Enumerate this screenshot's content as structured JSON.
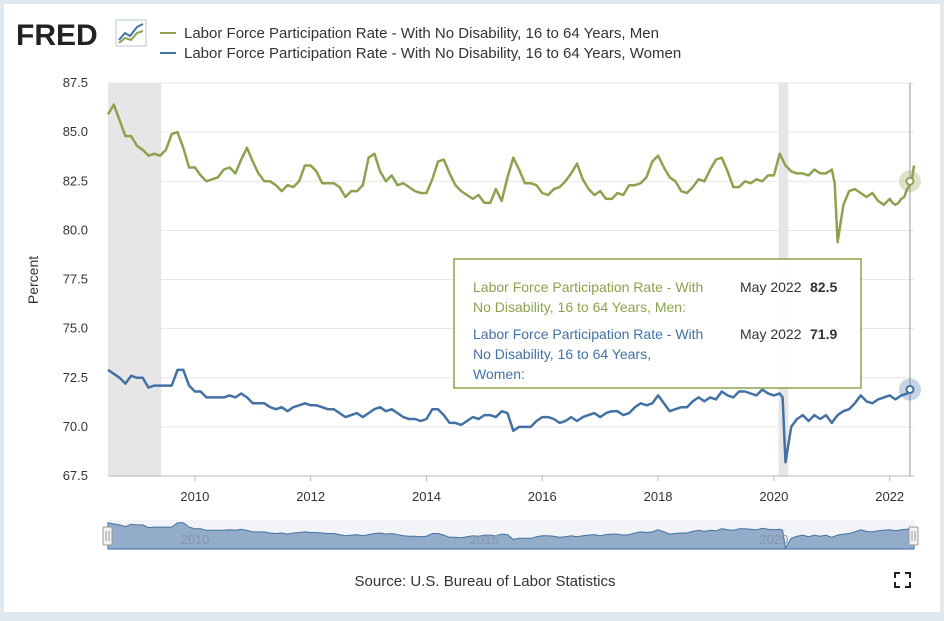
{
  "logo_text": "FRED",
  "colors": {
    "men": "#8da24f",
    "women": "#4471a3",
    "recession": "#e6e6e6",
    "tooltip_border": "#8da24f"
  },
  "source": "Source: U.S. Bureau of Labor Statistics",
  "fullscreen_icon": "fullscreen-icon",
  "tooltip": {
    "men_lines": [
      "Labor Force Participation Rate - With",
      "No Disability, 16 to 64 Years, Men:"
    ],
    "women_lines": [
      "Labor Force Participation Rate - With",
      "No Disability, 16 to 64 Years,",
      "Women:"
    ],
    "date": "May 2022",
    "men_value": "82.5",
    "women_value": "71.9"
  },
  "chart_data": {
    "type": "line",
    "ylabel": "Percent",
    "ylim": [
      67.5,
      87.5
    ],
    "yticks": [
      67.5,
      70.0,
      72.5,
      75.0,
      77.5,
      80.0,
      82.5,
      85.0,
      87.5
    ],
    "ytick_labels": [
      "67.5",
      "70.0",
      "72.5",
      "75.0",
      "77.5",
      "80.0",
      "82.5",
      "85.0",
      "87.5"
    ],
    "xlim": [
      2008.5,
      2022.42
    ],
    "xticks": [
      2010,
      2012,
      2014,
      2016,
      2018,
      2020,
      2022
    ],
    "xtick_labels": [
      "2010",
      "2012",
      "2014",
      "2016",
      "2018",
      "2020",
      "2022"
    ],
    "grid": true,
    "legend_position": "top",
    "recessions": [
      [
        2008.5,
        2009.42
      ],
      [
        2020.08,
        2020.25
      ]
    ],
    "navigator_labels": [
      "2010",
      "2015",
      "2020"
    ],
    "series": [
      {
        "name": "Labor Force Participation Rate - With No Disability, 16 to 64 Years, Men",
        "points": [
          [
            2008.5,
            85.9
          ],
          [
            2008.6,
            86.4
          ],
          [
            2008.7,
            85.6
          ],
          [
            2008.8,
            84.8
          ],
          [
            2008.9,
            84.8
          ],
          [
            2009.0,
            84.3
          ],
          [
            2009.1,
            84.1
          ],
          [
            2009.2,
            83.8
          ],
          [
            2009.3,
            83.9
          ],
          [
            2009.4,
            83.8
          ],
          [
            2009.5,
            84.1
          ],
          [
            2009.6,
            84.9
          ],
          [
            2009.7,
            85.0
          ],
          [
            2009.8,
            84.2
          ],
          [
            2009.9,
            83.2
          ],
          [
            2010.0,
            83.2
          ],
          [
            2010.1,
            82.8
          ],
          [
            2010.2,
            82.5
          ],
          [
            2010.3,
            82.6
          ],
          [
            2010.4,
            82.7
          ],
          [
            2010.5,
            83.1
          ],
          [
            2010.6,
            83.2
          ],
          [
            2010.7,
            82.9
          ],
          [
            2010.8,
            83.6
          ],
          [
            2010.9,
            84.2
          ],
          [
            2011.0,
            83.5
          ],
          [
            2011.1,
            82.9
          ],
          [
            2011.2,
            82.5
          ],
          [
            2011.3,
            82.5
          ],
          [
            2011.4,
            82.3
          ],
          [
            2011.5,
            82.0
          ],
          [
            2011.6,
            82.3
          ],
          [
            2011.7,
            82.2
          ],
          [
            2011.8,
            82.5
          ],
          [
            2011.9,
            83.3
          ],
          [
            2012.0,
            83.3
          ],
          [
            2012.1,
            83.0
          ],
          [
            2012.2,
            82.4
          ],
          [
            2012.3,
            82.4
          ],
          [
            2012.4,
            82.4
          ],
          [
            2012.5,
            82.2
          ],
          [
            2012.6,
            81.7
          ],
          [
            2012.7,
            82.0
          ],
          [
            2012.8,
            82.0
          ],
          [
            2012.9,
            82.3
          ],
          [
            2013.0,
            83.7
          ],
          [
            2013.1,
            83.9
          ],
          [
            2013.2,
            83.0
          ],
          [
            2013.3,
            82.5
          ],
          [
            2013.4,
            82.8
          ],
          [
            2013.5,
            82.3
          ],
          [
            2013.6,
            82.4
          ],
          [
            2013.7,
            82.2
          ],
          [
            2013.8,
            82.0
          ],
          [
            2013.9,
            81.9
          ],
          [
            2014.0,
            81.9
          ],
          [
            2014.1,
            82.6
          ],
          [
            2014.2,
            83.5
          ],
          [
            2014.3,
            83.6
          ],
          [
            2014.4,
            82.9
          ],
          [
            2014.5,
            82.3
          ],
          [
            2014.6,
            82.0
          ],
          [
            2014.7,
            81.8
          ],
          [
            2014.8,
            81.6
          ],
          [
            2014.9,
            81.8
          ],
          [
            2015.0,
            81.4
          ],
          [
            2015.1,
            81.4
          ],
          [
            2015.2,
            82.1
          ],
          [
            2015.3,
            81.5
          ],
          [
            2015.4,
            82.7
          ],
          [
            2015.5,
            83.7
          ],
          [
            2015.6,
            83.1
          ],
          [
            2015.7,
            82.4
          ],
          [
            2015.8,
            82.4
          ],
          [
            2015.9,
            82.3
          ],
          [
            2016.0,
            81.9
          ],
          [
            2016.1,
            81.8
          ],
          [
            2016.2,
            82.1
          ],
          [
            2016.3,
            82.2
          ],
          [
            2016.4,
            82.5
          ],
          [
            2016.5,
            82.9
          ],
          [
            2016.6,
            83.4
          ],
          [
            2016.7,
            82.6
          ],
          [
            2016.8,
            82.1
          ],
          [
            2016.9,
            81.8
          ],
          [
            2017.0,
            82.0
          ],
          [
            2017.1,
            81.6
          ],
          [
            2017.2,
            81.6
          ],
          [
            2017.3,
            81.9
          ],
          [
            2017.4,
            81.8
          ],
          [
            2017.5,
            82.3
          ],
          [
            2017.6,
            82.3
          ],
          [
            2017.7,
            82.4
          ],
          [
            2017.8,
            82.7
          ],
          [
            2017.9,
            83.5
          ],
          [
            2018.0,
            83.8
          ],
          [
            2018.1,
            83.2
          ],
          [
            2018.2,
            82.7
          ],
          [
            2018.3,
            82.5
          ],
          [
            2018.4,
            82.0
          ],
          [
            2018.5,
            81.9
          ],
          [
            2018.6,
            82.2
          ],
          [
            2018.7,
            82.6
          ],
          [
            2018.8,
            82.5
          ],
          [
            2018.9,
            83.1
          ],
          [
            2019.0,
            83.6
          ],
          [
            2019.1,
            83.7
          ],
          [
            2019.2,
            83.0
          ],
          [
            2019.3,
            82.2
          ],
          [
            2019.4,
            82.2
          ],
          [
            2019.5,
            82.5
          ],
          [
            2019.6,
            82.4
          ],
          [
            2019.7,
            82.6
          ],
          [
            2019.8,
            82.5
          ],
          [
            2019.9,
            82.8
          ],
          [
            2020.0,
            82.8
          ],
          [
            2020.1,
            83.9
          ],
          [
            2020.2,
            83.3
          ],
          [
            2020.3,
            83.0
          ],
          [
            2020.4,
            82.9
          ],
          [
            2020.5,
            82.9
          ],
          [
            2020.6,
            82.8
          ],
          [
            2020.7,
            83.1
          ],
          [
            2020.8,
            82.9
          ],
          [
            2020.9,
            82.9
          ],
          [
            2021.0,
            83.1
          ],
          [
            2021.05,
            82.4
          ],
          [
            2021.1,
            79.4
          ],
          [
            2021.2,
            81.3
          ],
          [
            2021.3,
            82.0
          ],
          [
            2021.4,
            82.1
          ],
          [
            2021.5,
            81.9
          ],
          [
            2021.6,
            81.7
          ],
          [
            2021.7,
            81.9
          ],
          [
            2021.8,
            81.5
          ],
          [
            2021.9,
            81.3
          ],
          [
            2022.0,
            81.6
          ],
          [
            2022.05,
            81.4
          ],
          [
            2022.1,
            81.3
          ],
          [
            2022.15,
            81.4
          ],
          [
            2022.2,
            81.6
          ],
          [
            2022.25,
            81.7
          ],
          [
            2022.3,
            82.1
          ],
          [
            2022.35,
            82.3
          ],
          [
            2022.38,
            82.5
          ],
          [
            2022.42,
            83.3
          ]
        ]
      },
      {
        "name": "Labor Force Participation Rate - With No Disability, 16 to 64 Years, Women",
        "points": [
          [
            2008.5,
            72.9
          ],
          [
            2008.6,
            72.7
          ],
          [
            2008.7,
            72.5
          ],
          [
            2008.8,
            72.2
          ],
          [
            2008.9,
            72.6
          ],
          [
            2009.0,
            72.5
          ],
          [
            2009.1,
            72.5
          ],
          [
            2009.2,
            72.0
          ],
          [
            2009.3,
            72.1
          ],
          [
            2009.4,
            72.1
          ],
          [
            2009.5,
            72.1
          ],
          [
            2009.6,
            72.1
          ],
          [
            2009.7,
            72.9
          ],
          [
            2009.8,
            72.9
          ],
          [
            2009.9,
            72.1
          ],
          [
            2010.0,
            71.8
          ],
          [
            2010.1,
            71.8
          ],
          [
            2010.2,
            71.5
          ],
          [
            2010.3,
            71.5
          ],
          [
            2010.4,
            71.5
          ],
          [
            2010.5,
            71.5
          ],
          [
            2010.6,
            71.6
          ],
          [
            2010.7,
            71.5
          ],
          [
            2010.8,
            71.7
          ],
          [
            2010.9,
            71.5
          ],
          [
            2011.0,
            71.2
          ],
          [
            2011.1,
            71.2
          ],
          [
            2011.2,
            71.2
          ],
          [
            2011.3,
            71.0
          ],
          [
            2011.4,
            70.9
          ],
          [
            2011.5,
            71.0
          ],
          [
            2011.6,
            70.8
          ],
          [
            2011.7,
            71.0
          ],
          [
            2011.8,
            71.1
          ],
          [
            2011.9,
            71.2
          ],
          [
            2012.0,
            71.1
          ],
          [
            2012.1,
            71.1
          ],
          [
            2012.2,
            71.0
          ],
          [
            2012.3,
            70.9
          ],
          [
            2012.4,
            70.9
          ],
          [
            2012.5,
            70.7
          ],
          [
            2012.6,
            70.5
          ],
          [
            2012.7,
            70.6
          ],
          [
            2012.8,
            70.7
          ],
          [
            2012.9,
            70.5
          ],
          [
            2013.0,
            70.7
          ],
          [
            2013.1,
            70.9
          ],
          [
            2013.2,
            71.0
          ],
          [
            2013.3,
            70.8
          ],
          [
            2013.4,
            70.9
          ],
          [
            2013.5,
            70.7
          ],
          [
            2013.6,
            70.5
          ],
          [
            2013.7,
            70.4
          ],
          [
            2013.8,
            70.4
          ],
          [
            2013.9,
            70.3
          ],
          [
            2014.0,
            70.4
          ],
          [
            2014.1,
            70.9
          ],
          [
            2014.2,
            70.9
          ],
          [
            2014.3,
            70.6
          ],
          [
            2014.4,
            70.2
          ],
          [
            2014.5,
            70.2
          ],
          [
            2014.6,
            70.1
          ],
          [
            2014.7,
            70.3
          ],
          [
            2014.8,
            70.5
          ],
          [
            2014.9,
            70.4
          ],
          [
            2015.0,
            70.6
          ],
          [
            2015.1,
            70.6
          ],
          [
            2015.2,
            70.5
          ],
          [
            2015.3,
            70.8
          ],
          [
            2015.4,
            70.7
          ],
          [
            2015.5,
            69.8
          ],
          [
            2015.6,
            70.0
          ],
          [
            2015.7,
            70.0
          ],
          [
            2015.8,
            70.0
          ],
          [
            2015.9,
            70.3
          ],
          [
            2016.0,
            70.5
          ],
          [
            2016.1,
            70.5
          ],
          [
            2016.2,
            70.4
          ],
          [
            2016.3,
            70.2
          ],
          [
            2016.4,
            70.3
          ],
          [
            2016.5,
            70.5
          ],
          [
            2016.6,
            70.3
          ],
          [
            2016.7,
            70.5
          ],
          [
            2016.8,
            70.6
          ],
          [
            2016.9,
            70.7
          ],
          [
            2017.0,
            70.5
          ],
          [
            2017.1,
            70.7
          ],
          [
            2017.2,
            70.8
          ],
          [
            2017.3,
            70.8
          ],
          [
            2017.4,
            70.6
          ],
          [
            2017.5,
            70.7
          ],
          [
            2017.6,
            71.0
          ],
          [
            2017.7,
            71.2
          ],
          [
            2017.8,
            71.1
          ],
          [
            2017.9,
            71.2
          ],
          [
            2018.0,
            71.6
          ],
          [
            2018.1,
            71.2
          ],
          [
            2018.2,
            70.8
          ],
          [
            2018.3,
            70.9
          ],
          [
            2018.4,
            71.0
          ],
          [
            2018.5,
            71.0
          ],
          [
            2018.6,
            71.3
          ],
          [
            2018.7,
            71.5
          ],
          [
            2018.8,
            71.3
          ],
          [
            2018.9,
            71.5
          ],
          [
            2019.0,
            71.4
          ],
          [
            2019.1,
            71.8
          ],
          [
            2019.2,
            71.6
          ],
          [
            2019.3,
            71.5
          ],
          [
            2019.4,
            71.8
          ],
          [
            2019.5,
            71.8
          ],
          [
            2019.6,
            71.7
          ],
          [
            2019.7,
            71.6
          ],
          [
            2019.8,
            71.9
          ],
          [
            2019.9,
            71.7
          ],
          [
            2020.0,
            71.6
          ],
          [
            2020.1,
            71.7
          ],
          [
            2020.15,
            71.5
          ],
          [
            2020.2,
            68.2
          ],
          [
            2020.3,
            70.0
          ],
          [
            2020.4,
            70.4
          ],
          [
            2020.5,
            70.6
          ],
          [
            2020.6,
            70.3
          ],
          [
            2020.7,
            70.6
          ],
          [
            2020.8,
            70.4
          ],
          [
            2020.9,
            70.6
          ],
          [
            2021.0,
            70.2
          ],
          [
            2021.1,
            70.6
          ],
          [
            2021.2,
            70.8
          ],
          [
            2021.3,
            70.9
          ],
          [
            2021.4,
            71.2
          ],
          [
            2021.5,
            71.6
          ],
          [
            2021.6,
            71.3
          ],
          [
            2021.7,
            71.2
          ],
          [
            2021.8,
            71.4
          ],
          [
            2021.9,
            71.5
          ],
          [
            2022.0,
            71.6
          ],
          [
            2022.1,
            71.4
          ],
          [
            2022.2,
            71.6
          ],
          [
            2022.3,
            71.7
          ],
          [
            2022.35,
            71.9
          ],
          [
            2022.42,
            71.9
          ]
        ]
      }
    ]
  }
}
